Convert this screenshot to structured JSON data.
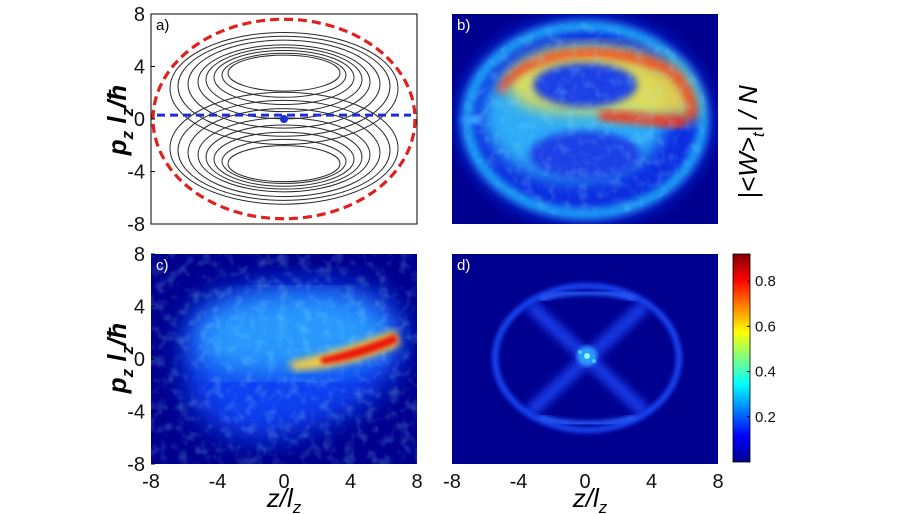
{
  "figure": {
    "colorbar": {
      "label_main": "|<W>",
      "label_sub": "t",
      "label_tail": "| / N",
      "ticks": [
        0.2,
        0.4,
        0.6,
        0.8
      ],
      "range": [
        0,
        0.92
      ]
    },
    "ylabel_main": "p",
    "ylabel_sub1": "z",
    "ylabel_mid": " l",
    "ylabel_sub2": "z",
    "ylabel_tail": "/ħ",
    "xlabel_main": "z/l",
    "xlabel_sub": "z"
  },
  "chart_data": [
    {
      "panel": "a)",
      "type": "line",
      "description_of_marks": "phase-space orbits",
      "x_ticks": [
        -8,
        -4,
        0,
        4,
        8
      ],
      "y_ticks": [
        8,
        4,
        0,
        -4,
        -8
      ],
      "xlim": [
        -8,
        8
      ],
      "ylim": [
        -8,
        8
      ],
      "boundary_color": "#e0201c",
      "separatrix_color": "#1a2fd6",
      "center_point": [
        0,
        0
      ],
      "separatrix_y": 0.3,
      "boundary_radius_x": 8,
      "boundary_radius_y": 7.6,
      "island_centers": [
        [
          0,
          3.5
        ],
        [
          0,
          -3.4
        ]
      ]
    },
    {
      "panel": "b)",
      "type": "heatmap",
      "xlim": [
        -8,
        8
      ],
      "ylim": [
        -8,
        8
      ]
    },
    {
      "panel": "c)",
      "type": "heatmap",
      "x_ticks": [
        -8,
        -4,
        0,
        4,
        8
      ],
      "y_ticks": [
        8,
        4,
        0,
        -4,
        -8
      ],
      "xlim": [
        -8,
        8
      ],
      "ylim": [
        -8,
        8
      ]
    },
    {
      "panel": "d)",
      "type": "heatmap",
      "x_ticks": [
        -8,
        -4,
        0,
        4,
        8
      ],
      "xlim": [
        -8,
        8
      ],
      "ylim": [
        -8,
        8
      ]
    }
  ]
}
